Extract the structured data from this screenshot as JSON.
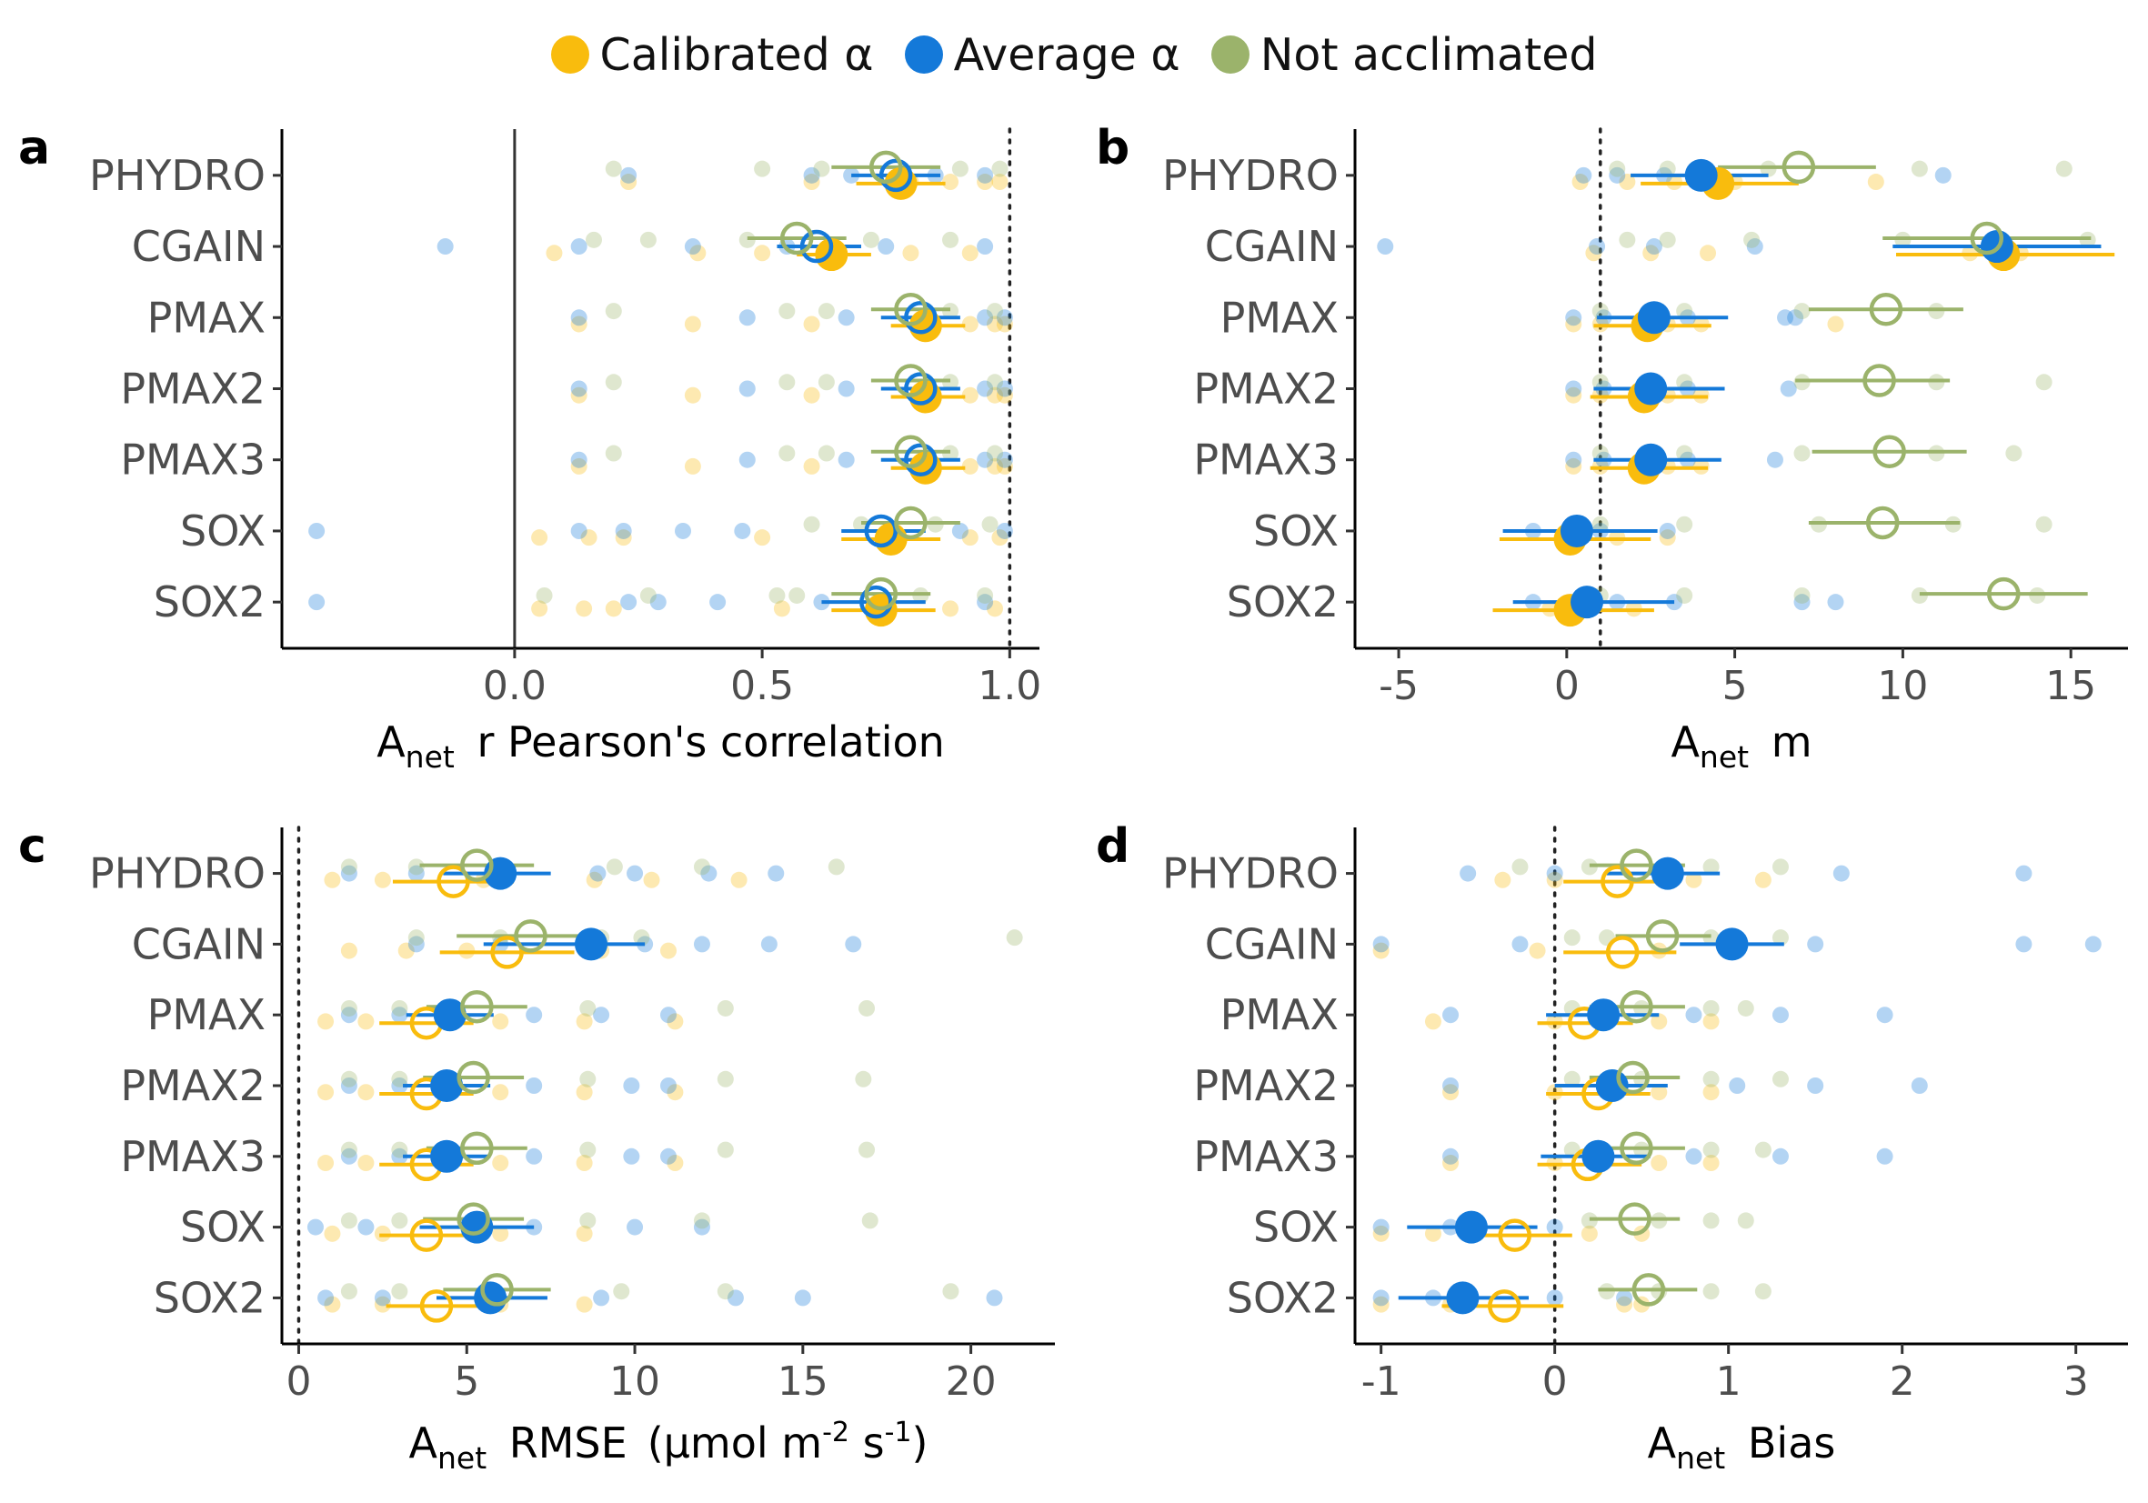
{
  "legend": {
    "items": [
      {
        "label": "Calibrated α",
        "color": "#F9BC0D"
      },
      {
        "label": "Average α",
        "color": "#1479D9"
      },
      {
        "label": "Not acclimated",
        "color": "#9BB36B"
      }
    ]
  },
  "colors": {
    "calibrated": "#F9BC0D",
    "average": "#1479D9",
    "not_acclimated": "#9BB36B"
  },
  "chart_data": [
    {
      "type": "scatter",
      "panel_label": "a",
      "xlabel_main": "A",
      "xlabel_sub": "net",
      "xlabel_rest": "r Pearson's correlation",
      "categories": [
        "PHYDRO",
        "CGAIN",
        "PMAX",
        "PMAX2",
        "PMAX3",
        "SOX",
        "SOX2"
      ],
      "xlim": [
        -0.47,
        1.06
      ],
      "xticks": [
        0.0,
        0.5,
        1.0
      ],
      "xtick_labels": [
        "0.0",
        "0.5",
        "1.0"
      ],
      "solid_vline": 0,
      "dotted_vline": 1,
      "series": [
        {
          "name": "Calibrated α",
          "marker": "filled",
          "values": [
            0.78,
            0.64,
            0.83,
            0.83,
            0.83,
            0.76,
            0.74
          ],
          "err_low": [
            0.69,
            0.57,
            0.76,
            0.76,
            0.76,
            0.66,
            0.64
          ],
          "err_high": [
            0.87,
            0.72,
            0.91,
            0.91,
            0.91,
            0.86,
            0.85
          ]
        },
        {
          "name": "Average α",
          "marker": "open",
          "values": [
            0.77,
            0.61,
            0.82,
            0.82,
            0.82,
            0.74,
            0.73
          ],
          "err_low": [
            0.68,
            0.53,
            0.74,
            0.74,
            0.74,
            0.66,
            0.62
          ],
          "err_high": [
            0.86,
            0.7,
            0.9,
            0.9,
            0.9,
            0.83,
            0.83
          ]
        },
        {
          "name": "Not acclimated",
          "marker": "open",
          "values": [
            0.75,
            0.57,
            0.8,
            0.8,
            0.8,
            0.8,
            0.74
          ],
          "err_low": [
            0.64,
            0.47,
            0.72,
            0.72,
            0.72,
            0.7,
            0.64
          ],
          "err_high": [
            0.86,
            0.67,
            0.88,
            0.88,
            0.88,
            0.9,
            0.84
          ]
        }
      ],
      "points": {
        "calibrated": [
          [
            0.23,
            0.6,
            0.8,
            0.88,
            0.95,
            0.98
          ],
          [
            0.08,
            0.37,
            0.5,
            0.8,
            0.92
          ],
          [
            0.13,
            0.36,
            0.6,
            0.92,
            0.97,
            0.99
          ],
          [
            0.13,
            0.36,
            0.6,
            0.92,
            0.97,
            0.99
          ],
          [
            0.13,
            0.36,
            0.6,
            0.92,
            0.97,
            0.99
          ],
          [
            0.05,
            0.15,
            0.22,
            0.5,
            0.92,
            0.98
          ],
          [
            0.05,
            0.14,
            0.2,
            0.54,
            0.88,
            0.97
          ]
        ],
        "average": [
          [
            0.23,
            0.6,
            0.68,
            0.85,
            0.95
          ],
          [
            -0.14,
            0.13,
            0.36,
            0.55,
            0.75,
            0.95
          ],
          [
            0.13,
            0.47,
            0.67,
            0.95,
            0.99
          ],
          [
            0.13,
            0.47,
            0.67,
            0.95,
            0.99
          ],
          [
            0.13,
            0.47,
            0.67,
            0.95,
            0.99
          ],
          [
            -0.4,
            0.13,
            0.22,
            0.34,
            0.46,
            0.9,
            0.99
          ],
          [
            -0.4,
            0.23,
            0.29,
            0.41,
            0.62,
            0.95
          ]
        ],
        "not_acclimated": [
          [
            0.2,
            0.5,
            0.62,
            0.9,
            0.98
          ],
          [
            0.16,
            0.27,
            0.47,
            0.72,
            0.88
          ],
          [
            0.2,
            0.55,
            0.63,
            0.88,
            0.97
          ],
          [
            0.2,
            0.55,
            0.63,
            0.88,
            0.97
          ],
          [
            0.2,
            0.55,
            0.63,
            0.88,
            0.97
          ],
          [
            0.6,
            0.7,
            0.85,
            0.96
          ],
          [
            0.06,
            0.27,
            0.53,
            0.57,
            0.82,
            0.95
          ]
        ]
      }
    },
    {
      "type": "scatter",
      "panel_label": "b",
      "xlabel_main": "A",
      "xlabel_sub": "net",
      "xlabel_rest": "m",
      "categories": [
        "PHYDRO",
        "CGAIN",
        "PMAX",
        "PMAX2",
        "PMAX3",
        "SOX",
        "SOX2"
      ],
      "xlim": [
        -6.3,
        16.7
      ],
      "xticks": [
        -5,
        0,
        5,
        10,
        15
      ],
      "xtick_labels": [
        "-5",
        "0",
        "5",
        "10",
        "15"
      ],
      "dotted_vline": 1,
      "series": [
        {
          "name": "Calibrated α",
          "marker": "filled",
          "values": [
            4.5,
            13.0,
            2.4,
            2.3,
            2.3,
            0.1,
            0.1
          ],
          "err_low": [
            2.2,
            9.8,
            0.8,
            0.7,
            0.7,
            -2.0,
            -2.2
          ],
          "err_high": [
            6.9,
            16.3,
            4.3,
            4.2,
            4.2,
            2.5,
            2.6
          ]
        },
        {
          "name": "Average α",
          "marker": "filled",
          "values": [
            4.0,
            12.8,
            2.6,
            2.5,
            2.5,
            0.3,
            0.6
          ],
          "err_low": [
            1.9,
            9.7,
            0.9,
            0.8,
            0.8,
            -1.9,
            -1.6
          ],
          "err_high": [
            6.0,
            15.9,
            4.8,
            4.7,
            4.6,
            2.7,
            3.2
          ]
        },
        {
          "name": "Not acclimated",
          "marker": "open",
          "values": [
            6.9,
            12.5,
            9.5,
            9.3,
            9.6,
            9.4,
            13.0
          ],
          "err_low": [
            4.5,
            9.4,
            7.2,
            6.8,
            7.3,
            7.2,
            10.5
          ],
          "err_high": [
            9.2,
            15.6,
            11.8,
            11.4,
            11.9,
            11.7,
            15.5
          ]
        }
      ],
      "points": {
        "calibrated": [
          [
            0.4,
            1.8,
            3.2,
            5.0,
            9.2
          ],
          [
            0.8,
            2.5,
            4.2,
            12.0,
            13.5
          ],
          [
            0.2,
            1.0,
            3.0,
            4.0,
            8.0
          ],
          [
            0.2,
            1.0,
            3.0,
            4.0
          ],
          [
            0.2,
            1.0,
            3.0,
            4.0
          ],
          [
            0.0,
            1.5,
            3.0
          ],
          [
            -0.5,
            0.5,
            2.0
          ]
        ],
        "average": [
          [
            0.5,
            1.5,
            2.9,
            4.5,
            11.2
          ],
          [
            -5.4,
            0.9,
            2.6,
            5.6,
            13.1
          ],
          [
            0.2,
            1.1,
            3.6,
            6.5,
            6.8
          ],
          [
            0.2,
            1.1,
            3.6,
            6.6
          ],
          [
            0.2,
            1.1,
            3.6,
            6.2
          ],
          [
            -1.0,
            1.0,
            3.0
          ],
          [
            -1.0,
            1.5,
            3.2,
            7.0,
            8.0
          ]
        ],
        "not_acclimated": [
          [
            1.5,
            3.0,
            6.0,
            10.5,
            14.8
          ],
          [
            1.8,
            3.0,
            5.5,
            10.0,
            15.5
          ],
          [
            1.0,
            3.5,
            7.0,
            11.0
          ],
          [
            1.0,
            3.5,
            7.0,
            11.0,
            14.2
          ],
          [
            1.0,
            3.5,
            7.0,
            11.0,
            13.3
          ],
          [
            1.0,
            3.5,
            7.5,
            11.5,
            14.2
          ],
          [
            1.0,
            3.5,
            7.0,
            10.5,
            14.0
          ]
        ]
      }
    },
    {
      "type": "scatter",
      "panel_label": "c",
      "xlabel_main": "A",
      "xlabel_sub": "net",
      "xlabel_rest": "RMSE",
      "xlabel_unit": "(μmol m",
      "xlabel_unit_sup1": "-2",
      "xlabel_unit_mid": " s",
      "xlabel_unit_sup2": "-1",
      "xlabel_unit_end": ")",
      "categories": [
        "PHYDRO",
        "CGAIN",
        "PMAX",
        "PMAX2",
        "PMAX3",
        "SOX",
        "SOX2"
      ],
      "xlim": [
        -0.5,
        22.5
      ],
      "xticks": [
        0,
        5,
        10,
        15,
        20
      ],
      "xtick_labels": [
        "0",
        "5",
        "10",
        "15",
        "20"
      ],
      "dotted_vline": 0,
      "series": [
        {
          "name": "Calibrated α",
          "marker": "open",
          "values": [
            4.6,
            6.2,
            3.8,
            3.8,
            3.8,
            3.8,
            4.1
          ],
          "err_low": [
            2.8,
            4.2,
            2.4,
            2.4,
            2.4,
            2.4,
            2.6
          ],
          "err_high": [
            6.4,
            8.2,
            5.2,
            5.2,
            5.2,
            5.2,
            5.6
          ]
        },
        {
          "name": "Average α",
          "marker": "filled",
          "values": [
            6.0,
            8.7,
            4.5,
            4.4,
            4.4,
            5.3,
            5.7
          ],
          "err_low": [
            4.3,
            5.5,
            3.2,
            3.1,
            3.1,
            3.6,
            4.1
          ],
          "err_high": [
            7.5,
            10.3,
            5.8,
            5.7,
            5.7,
            7.0,
            7.4
          ]
        },
        {
          "name": "Not acclimated",
          "marker": "open",
          "values": [
            5.3,
            6.9,
            5.3,
            5.2,
            5.3,
            5.2,
            5.9
          ],
          "err_low": [
            3.6,
            4.7,
            3.8,
            3.7,
            3.8,
            3.7,
            4.3
          ],
          "err_high": [
            7.0,
            9.1,
            6.8,
            6.7,
            6.8,
            6.7,
            7.5
          ]
        }
      ],
      "points": {
        "calibrated": [
          [
            1.0,
            2.5,
            5.5,
            8.8,
            10.5,
            13.1
          ],
          [
            1.5,
            3.2,
            5.0,
            9.0,
            11.0
          ],
          [
            0.8,
            2.0,
            6.0,
            8.5,
            11.2
          ],
          [
            0.8,
            2.0,
            6.0,
            8.5,
            11.2
          ],
          [
            0.8,
            2.0,
            6.0,
            8.5,
            11.2
          ],
          [
            1.0,
            2.5,
            6.0,
            8.5
          ],
          [
            1.0,
            2.5,
            6.0,
            8.5
          ]
        ],
        "average": [
          [
            1.5,
            3.5,
            8.9,
            10.0,
            12.2,
            14.2
          ],
          [
            3.5,
            6.0,
            10.3,
            12.0,
            14.0,
            16.5
          ],
          [
            1.5,
            3.0,
            7.0,
            9.0,
            11.0
          ],
          [
            1.5,
            3.0,
            7.0,
            9.9,
            11.0
          ],
          [
            1.5,
            3.0,
            7.0,
            9.9,
            11.0
          ],
          [
            0.5,
            2.0,
            7.0,
            10.0,
            12.0
          ],
          [
            0.8,
            2.5,
            9.0,
            13.0,
            15.0,
            20.7
          ]
        ],
        "not_acclimated": [
          [
            1.5,
            3.5,
            9.4,
            12.0,
            16.0
          ],
          [
            3.5,
            6.0,
            9.0,
            10.2,
            21.3
          ],
          [
            1.5,
            3.0,
            8.6,
            12.7,
            16.9
          ],
          [
            1.5,
            3.0,
            8.6,
            12.7,
            16.8
          ],
          [
            1.5,
            3.0,
            8.6,
            12.7,
            16.9
          ],
          [
            1.5,
            3.0,
            8.6,
            12.0,
            17.0
          ],
          [
            1.5,
            3.0,
            9.6,
            12.7,
            19.4
          ]
        ]
      }
    },
    {
      "type": "scatter",
      "panel_label": "d",
      "xlabel_main": "A",
      "xlabel_sub": "net",
      "xlabel_rest": "Bias",
      "categories": [
        "PHYDRO",
        "CGAIN",
        "PMAX",
        "PMAX2",
        "PMAX3",
        "SOX",
        "SOX2"
      ],
      "xlim": [
        -1.15,
        3.3
      ],
      "xticks": [
        -1,
        0,
        1,
        2,
        3
      ],
      "xtick_labels": [
        "-1",
        "0",
        "1",
        "2",
        "3"
      ],
      "dotted_vline": 0,
      "series": [
        {
          "name": "Calibrated α",
          "marker": "open",
          "values": [
            0.36,
            0.39,
            0.17,
            0.25,
            0.19,
            -0.23,
            -0.29
          ],
          "err_low": [
            0.05,
            0.05,
            -0.1,
            -0.05,
            -0.1,
            -0.55,
            -0.65
          ],
          "err_high": [
            0.65,
            0.7,
            0.45,
            0.55,
            0.5,
            0.1,
            0.05
          ]
        },
        {
          "name": "Average α",
          "marker": "filled",
          "values": [
            0.65,
            1.02,
            0.28,
            0.33,
            0.25,
            -0.48,
            -0.53
          ],
          "err_low": [
            0.3,
            0.72,
            -0.05,
            0.0,
            -0.08,
            -0.85,
            -0.9
          ],
          "err_high": [
            0.95,
            1.32,
            0.6,
            0.65,
            0.55,
            -0.1,
            -0.15
          ]
        },
        {
          "name": "Not acclimated",
          "marker": "open",
          "values": [
            0.47,
            0.62,
            0.47,
            0.45,
            0.47,
            0.46,
            0.54
          ],
          "err_low": [
            0.2,
            0.35,
            0.2,
            0.2,
            0.2,
            0.2,
            0.25
          ],
          "err_high": [
            0.75,
            0.9,
            0.75,
            0.72,
            0.75,
            0.72,
            0.82
          ]
        }
      ],
      "points": {
        "calibrated": [
          [
            -0.3,
            0.0,
            0.8,
            1.2
          ],
          [
            -1.0,
            -0.1,
            0.6,
            1.0
          ],
          [
            -0.7,
            0.0,
            0.6,
            0.9
          ],
          [
            -0.6,
            0.0,
            0.6,
            0.9
          ],
          [
            -0.6,
            0.0,
            0.6,
            0.9
          ],
          [
            -1.0,
            -0.7,
            0.2,
            0.5
          ],
          [
            -1.0,
            -0.6,
            0.4,
            0.5
          ]
        ],
        "average": [
          [
            -0.5,
            0.0,
            1.65,
            2.7
          ],
          [
            -1.0,
            -0.2,
            1.5,
            2.7,
            3.1
          ],
          [
            -0.6,
            0.8,
            1.3,
            1.9
          ],
          [
            -0.6,
            1.05,
            1.5,
            2.1
          ],
          [
            -0.6,
            0.8,
            1.3,
            1.9
          ],
          [
            -1.0,
            -0.6,
            0.0
          ],
          [
            -1.0,
            -0.7,
            0.0,
            0.4
          ]
        ],
        "not_acclimated": [
          [
            -0.2,
            0.2,
            0.9,
            1.3
          ],
          [
            0.1,
            0.3,
            0.9,
            1.3
          ],
          [
            0.1,
            0.5,
            0.9,
            1.1
          ],
          [
            0.1,
            0.5,
            0.9,
            1.3
          ],
          [
            0.1,
            0.5,
            0.9,
            1.2
          ],
          [
            0.2,
            0.6,
            0.9,
            1.1
          ],
          [
            0.3,
            0.6,
            0.9,
            1.2
          ]
        ]
      }
    }
  ]
}
